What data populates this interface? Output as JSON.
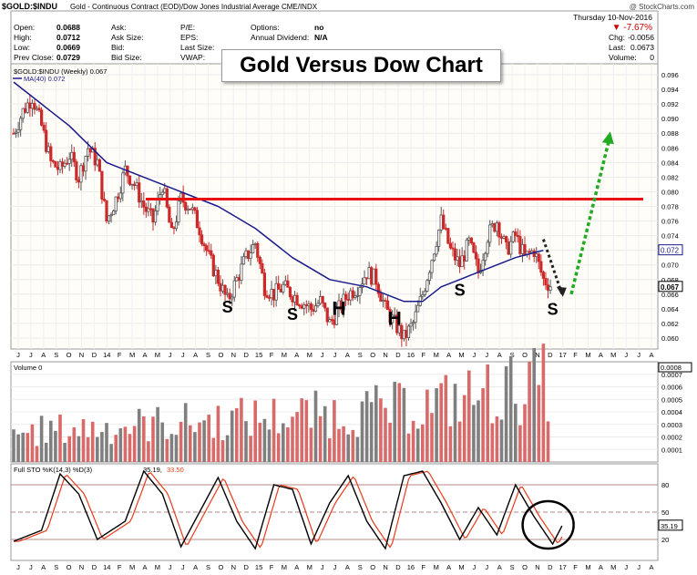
{
  "header": {
    "symbol": "$GOLD:$INDU",
    "description": "Gold - Continuous Contract (EOD)/Dow Jones Industrial Average  CME/INDX",
    "credit": "@ StockCharts.com",
    "date": "Thursday  10-Nov-2016",
    "change_pct": "▼ -7.67%",
    "chg_label": "Chg:",
    "chg_value": "-0.0056",
    "last_label": "Last:",
    "last_value": "0.0673",
    "volume_label": "Volume:",
    "volume_value": "0"
  },
  "quote_fields": [
    {
      "label": "Open:",
      "value": "0.0688"
    },
    {
      "label": "High:",
      "value": "0.0712"
    },
    {
      "label": "Low:",
      "value": "0.0669"
    },
    {
      "label": "Prev Close:",
      "value": "0.0729"
    }
  ],
  "quote_fields_2": [
    "Ask:",
    "Ask Size:",
    "Bid:",
    "Bid Size:"
  ],
  "quote_fields_3": [
    "P/E:",
    "EPS:",
    "Last Size:",
    "VWAP:"
  ],
  "quote_fields_4": [
    {
      "label": "Options:",
      "value": "no"
    },
    {
      "label": "Annual Dividend:",
      "value": "N/A"
    }
  ],
  "overlay_title": "Gold Versus Dow Chart",
  "colors": {
    "up": "#555555",
    "down": "#cc2a2a",
    "ma": "#1a1a8c",
    "resistance": "#e81010",
    "projection_up": "#22aa22",
    "projection_down": "#222222",
    "sto_k": "#000000",
    "sto_d": "#e53b1a",
    "vol_up": "#7f7f7f",
    "vol_down": "#d86a6a"
  },
  "chart_data": [
    {
      "type": "candlestick",
      "title": "Gold Versus Dow Chart",
      "legend": [
        "$GOLD:$INDU (Weekly) 0.067",
        "MA(40) 0.072"
      ],
      "ylim": [
        0.0585,
        0.0975
      ],
      "y_ticks": [
        "0.096",
        "0.094",
        "0.092",
        "0.090",
        "0.088",
        "0.086",
        "0.084",
        "0.082",
        "0.080",
        "0.078",
        "0.076",
        "0.074",
        "0.072",
        "0.070",
        "0.068",
        "0.066",
        "0.064",
        "0.062",
        "0.060"
      ],
      "last_price_label": "0.067",
      "ma_label": "0.072",
      "x_month_labels": [
        "J",
        "J",
        "A",
        "S",
        "O",
        "N",
        "D",
        "14",
        "F",
        "M",
        "A",
        "M",
        "J",
        "J",
        "A",
        "S",
        "O",
        "N",
        "D",
        "15",
        "F",
        "M",
        "A",
        "M",
        "J",
        "J",
        "A",
        "S",
        "O",
        "N",
        "D",
        "16",
        "F",
        "M",
        "A",
        "M",
        "J",
        "J",
        "A",
        "S",
        "O",
        "N",
        "D",
        "17",
        "F",
        "M",
        "A",
        "M",
        "J",
        "J",
        "A"
      ],
      "price_anchors": [
        [
          0,
          0.088
        ],
        [
          1,
          0.091
        ],
        [
          2,
          0.093
        ],
        [
          3,
          0.089
        ],
        [
          4,
          0.084
        ],
        [
          5,
          0.083
        ],
        [
          6,
          0.085
        ],
        [
          7,
          0.082
        ],
        [
          8,
          0.086
        ],
        [
          9,
          0.084
        ],
        [
          10,
          0.076
        ],
        [
          11,
          0.079
        ],
        [
          12,
          0.083
        ],
        [
          13,
          0.081
        ],
        [
          14,
          0.078
        ],
        [
          15,
          0.076
        ],
        [
          16,
          0.081
        ],
        [
          17,
          0.074
        ],
        [
          18,
          0.079
        ],
        [
          19,
          0.078
        ],
        [
          20,
          0.075
        ],
        [
          21,
          0.071
        ],
        [
          22,
          0.068
        ],
        [
          23,
          0.065
        ],
        [
          24,
          0.068
        ],
        [
          25,
          0.071
        ],
        [
          26,
          0.073
        ],
        [
          27,
          0.067
        ],
        [
          28,
          0.066
        ],
        [
          29,
          0.067
        ],
        [
          30,
          0.066
        ],
        [
          31,
          0.065
        ],
        [
          32,
          0.064
        ],
        [
          33,
          0.065
        ],
        [
          34,
          0.062
        ],
        [
          35,
          0.064
        ],
        [
          36,
          0.066
        ],
        [
          37,
          0.067
        ],
        [
          38,
          0.069
        ],
        [
          39,
          0.068
        ],
        [
          40,
          0.064
        ],
        [
          41,
          0.062
        ],
        [
          42,
          0.06
        ],
        [
          43,
          0.062
        ],
        [
          44,
          0.066
        ],
        [
          45,
          0.071
        ],
        [
          46,
          0.076
        ],
        [
          47,
          0.072
        ],
        [
          48,
          0.07
        ],
        [
          49,
          0.073
        ],
        [
          50,
          0.069
        ],
        [
          51,
          0.074
        ],
        [
          52,
          0.076
        ],
        [
          53,
          0.072
        ],
        [
          54,
          0.074
        ],
        [
          55,
          0.071
        ],
        [
          56,
          0.072
        ],
        [
          57,
          0.068
        ],
        [
          58,
          0.067
        ]
      ],
      "ma_40": [
        [
          0,
          0.095
        ],
        [
          6,
          0.089
        ],
        [
          10,
          0.084
        ],
        [
          14,
          0.082
        ],
        [
          18,
          0.08
        ],
        [
          22,
          0.078
        ],
        [
          26,
          0.075
        ],
        [
          30,
          0.071
        ],
        [
          34,
          0.068
        ],
        [
          38,
          0.067
        ],
        [
          42,
          0.065
        ],
        [
          44,
          0.065
        ],
        [
          46,
          0.067
        ],
        [
          50,
          0.069
        ],
        [
          54,
          0.071
        ],
        [
          57,
          0.072
        ]
      ],
      "resistance_line": 0.079,
      "annotations": [
        {
          "text": "S",
          "index": 23,
          "price": 0.0645
        },
        {
          "text": "S",
          "index": 30,
          "price": 0.0635
        },
        {
          "text": "H",
          "index": 35,
          "price": 0.0642
        },
        {
          "text": "H",
          "index": 41,
          "price": 0.0628
        },
        {
          "text": "S",
          "index": 48,
          "price": 0.0668
        },
        {
          "text": "S",
          "index": 58,
          "price": 0.0642
        }
      ],
      "projection_down": [
        [
          57,
          0.0735
        ],
        [
          59,
          0.066
        ]
      ],
      "projection_up": [
        [
          60,
          0.066
        ],
        [
          64,
          0.088
        ]
      ]
    },
    {
      "type": "bar",
      "title": "Volume 0",
      "ylim": [
        0,
        0.0008
      ],
      "y_ticks": [
        "0.0007",
        "0.0006",
        "0.0005",
        "0.0004",
        "0.0003",
        "0.0002",
        "0.0001"
      ],
      "top_label": "0.0008",
      "volume_profile": [
        [
          0,
          0.00025
        ],
        [
          5,
          0.00028
        ],
        [
          10,
          0.0003
        ],
        [
          15,
          0.00033
        ],
        [
          20,
          0.00035
        ],
        [
          25,
          0.00038
        ],
        [
          30,
          0.0004
        ],
        [
          35,
          0.00042
        ],
        [
          40,
          0.00045
        ],
        [
          45,
          0.0005
        ],
        [
          50,
          0.00058
        ],
        [
          55,
          0.00065
        ],
        [
          58,
          0.0007
        ]
      ]
    },
    {
      "type": "line",
      "title": "Full STO %K(14,3) %D(3) 35.19, 33.50",
      "legend_prefix": "Full STO %K(14,3) %D(3) ",
      "legend_k": "35.19,",
      "legend_d": "33.50",
      "ylim": [
        0,
        100
      ],
      "y_ticks": [
        "80",
        "50",
        "20"
      ],
      "k_label": "35.19",
      "levels": [
        80,
        50,
        20
      ],
      "k_anchors": [
        [
          0,
          18
        ],
        [
          3,
          30
        ],
        [
          5,
          92
        ],
        [
          7,
          70
        ],
        [
          9,
          20
        ],
        [
          12,
          40
        ],
        [
          14,
          95
        ],
        [
          16,
          70
        ],
        [
          18,
          12
        ],
        [
          20,
          50
        ],
        [
          22,
          88
        ],
        [
          24,
          40
        ],
        [
          26,
          10
        ],
        [
          28,
          80
        ],
        [
          30,
          75
        ],
        [
          32,
          15
        ],
        [
          34,
          60
        ],
        [
          36,
          90
        ],
        [
          38,
          40
        ],
        [
          40,
          10
        ],
        [
          42,
          90
        ],
        [
          44,
          95
        ],
        [
          46,
          60
        ],
        [
          48,
          20
        ],
        [
          50,
          55
        ],
        [
          52,
          25
        ],
        [
          54,
          80
        ],
        [
          56,
          45
        ],
        [
          58,
          15
        ],
        [
          59,
          35
        ]
      ],
      "highlight_circle_index": 58
    }
  ]
}
